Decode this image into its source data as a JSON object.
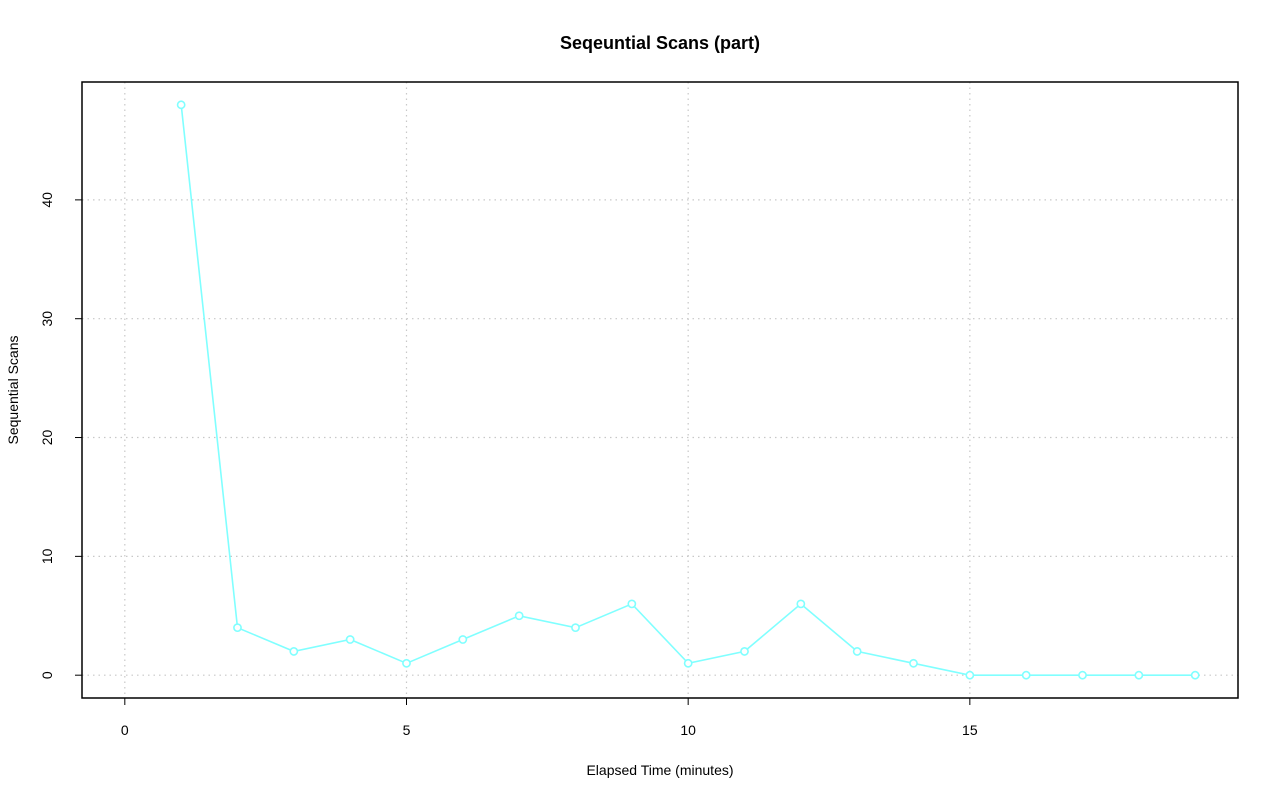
{
  "chart_data": {
    "type": "line",
    "title": "Seqeuntial Scans (part)",
    "xlabel": "Elapsed Time (minutes)",
    "ylabel": "Sequential Scans",
    "xlim": [
      -0.76,
      19.76
    ],
    "ylim": [
      -1.92,
      49.92
    ],
    "x_ticks": [
      0,
      5,
      10,
      15
    ],
    "y_ticks": [
      0,
      10,
      20,
      30,
      40
    ],
    "grid": true,
    "legend": "none",
    "series": [
      {
        "color": "#80ffff",
        "marker": "open-circle",
        "x": [
          1,
          2,
          3,
          4,
          5,
          6,
          7,
          8,
          9,
          10,
          11,
          12,
          13,
          14,
          15,
          16,
          17,
          18,
          19
        ],
        "y": [
          48,
          4,
          2,
          3,
          1,
          3,
          5,
          4,
          6,
          1,
          2,
          6,
          2,
          1,
          0,
          0,
          0,
          0,
          0
        ]
      }
    ]
  }
}
